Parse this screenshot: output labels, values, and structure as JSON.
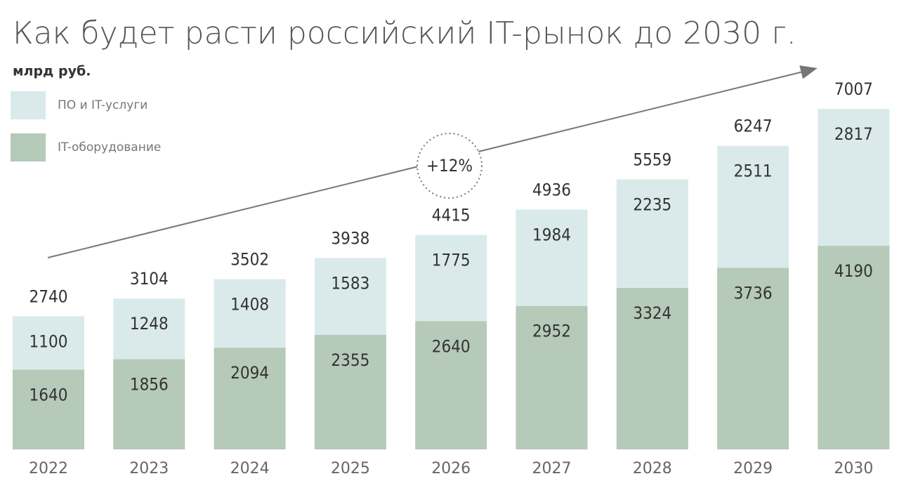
{
  "chart_data": {
    "type": "stacked_bar",
    "title": "Как будет расти российский IT-рынок до 2030 г.",
    "subtitle": "млрд руб.",
    "annotation": "+12%",
    "categories": [
      "2022",
      "2023",
      "2024",
      "2025",
      "2026",
      "2027",
      "2028",
      "2029",
      "2030"
    ],
    "series": [
      {
        "name": "IT-оборудование",
        "color": "#b5cab8",
        "values": [
          1640,
          1856,
          2094,
          2355,
          2640,
          2952,
          3324,
          3736,
          4190
        ]
      },
      {
        "name": "ПО и IT-услуги",
        "color": "#daeaea",
        "values": [
          1100,
          1248,
          1408,
          1583,
          1775,
          1984,
          2235,
          2511,
          2817
        ]
      }
    ],
    "totals": [
      2740,
      3104,
      3502,
      3938,
      4415,
      4936,
      5559,
      6247,
      7007
    ]
  }
}
